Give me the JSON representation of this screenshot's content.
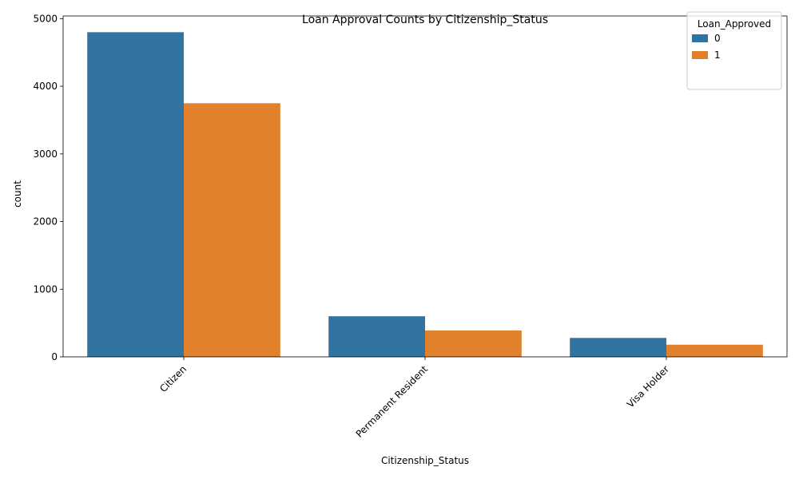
{
  "chart_data": {
    "type": "bar",
    "title": "Loan Approval Counts by Citizenship_Status",
    "xlabel": "Citizenship_Status",
    "ylabel": "count",
    "categories": [
      "Citizen",
      "Permanent Resident",
      "Visa Holder"
    ],
    "series": [
      {
        "name": "0",
        "color": "#3274a1",
        "values": [
          4800,
          600,
          280
        ]
      },
      {
        "name": "1",
        "color": "#e1812c",
        "values": [
          3750,
          390,
          180
        ]
      }
    ],
    "ylim": [
      0,
      5040
    ],
    "yticks": [
      0,
      1000,
      2000,
      3000,
      4000,
      5000
    ],
    "legend": {
      "title": "Loan_Approved",
      "position": "top-right"
    },
    "grid": false
  }
}
